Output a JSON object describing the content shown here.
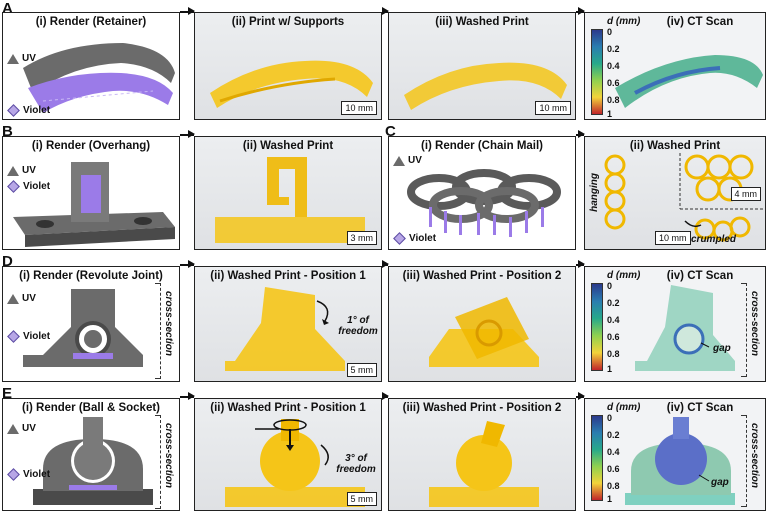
{
  "rows": {
    "A": {
      "letter": "A",
      "panels": [
        "(i) Render (Retainer)",
        "(ii) Print w/ Supports",
        "(iii) Washed Print",
        "(iv) CT Scan"
      ],
      "scales": [
        "10 mm",
        "10 mm"
      ],
      "legend": {
        "uv": "UV",
        "violet": "Violet"
      }
    },
    "B": {
      "letter": "B",
      "panels": [
        "(i) Render (Overhang)",
        "(ii) Washed Print"
      ],
      "scales": [
        "3 mm"
      ],
      "legend": {
        "uv": "UV",
        "violet": "Violet"
      }
    },
    "C": {
      "letter": "C",
      "panels": [
        "(i) Render (Chain Mail)",
        "(ii) Washed Print"
      ],
      "scales": [
        "4 mm",
        "10 mm"
      ],
      "legend": {
        "uv": "UV",
        "violet": "Violet"
      },
      "notes": {
        "hanging": "hanging",
        "crumpled": "crumpled"
      }
    },
    "D": {
      "letter": "D",
      "panels": [
        "(i) Render (Revolute Joint)",
        "(ii) Washed Print - Position 1",
        "(iii) Washed Print - Position 2",
        "(iv) CT Scan"
      ],
      "scales": [
        "5 mm"
      ],
      "legend": {
        "uv": "UV",
        "violet": "Violet"
      },
      "notes": {
        "freedom": "1° of freedom",
        "gap": "gap",
        "cross_section": "cross-section"
      }
    },
    "E": {
      "letter": "E",
      "panels": [
        "(i) Render (Ball & Socket)",
        "(ii) Washed Print - Position 1",
        "(iii) Washed Print - Position 2",
        "(iv) CT Scan"
      ],
      "scales": [
        "5 mm"
      ],
      "legend": {
        "uv": "UV",
        "violet": "Violet"
      },
      "notes": {
        "freedom": "3° of freedom",
        "gap": "gap",
        "cross_section": "cross-section"
      }
    }
  },
  "colorbar": {
    "title": "d (mm)",
    "ticks": [
      "0",
      "0.2",
      "0.4",
      "0.6",
      "0.8",
      "1"
    ]
  },
  "colors": {
    "uv_gray": "#6b6b6b",
    "violet": "#9b7be8",
    "resin_yellow": "#f5c518",
    "panel_border": "#222222"
  }
}
